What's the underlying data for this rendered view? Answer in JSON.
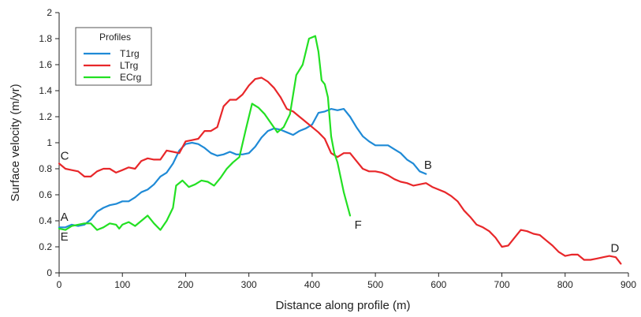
{
  "chart_data": {
    "type": "line",
    "title": "",
    "xlabel": "Distance along profile (m)",
    "ylabel": "Surface velocity (m/yr)",
    "xlim": [
      0,
      900
    ],
    "ylim": [
      0,
      2
    ],
    "xticks": [
      0,
      100,
      200,
      300,
      400,
      500,
      600,
      700,
      800,
      900
    ],
    "yticks": [
      0,
      0.2,
      0.4,
      0.6,
      0.8,
      1,
      1.2,
      1.4,
      1.6,
      1.8,
      2
    ],
    "ytick_labels": [
      "0",
      "0.2",
      "0.4",
      "0.6",
      "0.8",
      "1",
      "1.2",
      "1.4",
      "1.6",
      "1.8",
      "2"
    ],
    "grid": false,
    "legend": {
      "title": "Profiles",
      "placement": "top-left"
    },
    "series": [
      {
        "name": "T1rg",
        "color": "#1f8ad6",
        "points": [
          [
            0,
            0.35
          ],
          [
            10,
            0.35
          ],
          [
            20,
            0.37
          ],
          [
            30,
            0.36
          ],
          [
            40,
            0.37
          ],
          [
            50,
            0.41
          ],
          [
            60,
            0.47
          ],
          [
            70,
            0.5
          ],
          [
            80,
            0.52
          ],
          [
            90,
            0.53
          ],
          [
            100,
            0.55
          ],
          [
            110,
            0.55
          ],
          [
            120,
            0.58
          ],
          [
            130,
            0.62
          ],
          [
            140,
            0.64
          ],
          [
            150,
            0.68
          ],
          [
            160,
            0.74
          ],
          [
            170,
            0.77
          ],
          [
            180,
            0.84
          ],
          [
            190,
            0.94
          ],
          [
            200,
            0.99
          ],
          [
            210,
            1.0
          ],
          [
            220,
            0.99
          ],
          [
            230,
            0.96
          ],
          [
            240,
            0.92
          ],
          [
            250,
            0.9
          ],
          [
            260,
            0.91
          ],
          [
            270,
            0.93
          ],
          [
            280,
            0.91
          ],
          [
            290,
            0.91
          ],
          [
            300,
            0.92
          ],
          [
            310,
            0.97
          ],
          [
            320,
            1.04
          ],
          [
            330,
            1.09
          ],
          [
            340,
            1.11
          ],
          [
            350,
            1.1
          ],
          [
            360,
            1.08
          ],
          [
            370,
            1.06
          ],
          [
            380,
            1.09
          ],
          [
            390,
            1.11
          ],
          [
            400,
            1.14
          ],
          [
            410,
            1.23
          ],
          [
            420,
            1.24
          ],
          [
            430,
            1.26
          ],
          [
            440,
            1.25
          ],
          [
            450,
            1.26
          ],
          [
            460,
            1.2
          ],
          [
            470,
            1.12
          ],
          [
            480,
            1.05
          ],
          [
            490,
            1.01
          ],
          [
            500,
            0.98
          ],
          [
            510,
            0.98
          ],
          [
            520,
            0.98
          ],
          [
            530,
            0.95
          ],
          [
            540,
            0.92
          ],
          [
            550,
            0.87
          ],
          [
            560,
            0.84
          ],
          [
            570,
            0.78
          ],
          [
            580,
            0.76
          ]
        ]
      },
      {
        "name": "LTrg",
        "color": "#e8272a",
        "points": [
          [
            0,
            0.84
          ],
          [
            10,
            0.8
          ],
          [
            20,
            0.79
          ],
          [
            30,
            0.78
          ],
          [
            40,
            0.74
          ],
          [
            50,
            0.74
          ],
          [
            60,
            0.78
          ],
          [
            70,
            0.8
          ],
          [
            80,
            0.8
          ],
          [
            90,
            0.77
          ],
          [
            100,
            0.79
          ],
          [
            110,
            0.81
          ],
          [
            120,
            0.8
          ],
          [
            130,
            0.86
          ],
          [
            140,
            0.88
          ],
          [
            150,
            0.87
          ],
          [
            160,
            0.87
          ],
          [
            170,
            0.94
          ],
          [
            180,
            0.93
          ],
          [
            190,
            0.92
          ],
          [
            200,
            1.01
          ],
          [
            210,
            1.02
          ],
          [
            220,
            1.03
          ],
          [
            230,
            1.09
          ],
          [
            240,
            1.09
          ],
          [
            250,
            1.12
          ],
          [
            260,
            1.28
          ],
          [
            270,
            1.33
          ],
          [
            280,
            1.33
          ],
          [
            290,
            1.37
          ],
          [
            300,
            1.44
          ],
          [
            310,
            1.49
          ],
          [
            320,
            1.5
          ],
          [
            330,
            1.47
          ],
          [
            340,
            1.42
          ],
          [
            350,
            1.35
          ],
          [
            360,
            1.26
          ],
          [
            370,
            1.24
          ],
          [
            380,
            1.2
          ],
          [
            390,
            1.16
          ],
          [
            400,
            1.12
          ],
          [
            410,
            1.08
          ],
          [
            420,
            1.03
          ],
          [
            430,
            0.92
          ],
          [
            440,
            0.89
          ],
          [
            450,
            0.92
          ],
          [
            460,
            0.92
          ],
          [
            470,
            0.86
          ],
          [
            480,
            0.8
          ],
          [
            490,
            0.78
          ],
          [
            500,
            0.78
          ],
          [
            510,
            0.77
          ],
          [
            520,
            0.75
          ],
          [
            530,
            0.72
          ],
          [
            540,
            0.7
          ],
          [
            550,
            0.69
          ],
          [
            560,
            0.67
          ],
          [
            570,
            0.68
          ],
          [
            580,
            0.69
          ],
          [
            590,
            0.66
          ],
          [
            600,
            0.64
          ],
          [
            610,
            0.62
          ],
          [
            620,
            0.59
          ],
          [
            630,
            0.55
          ],
          [
            640,
            0.48
          ],
          [
            650,
            0.43
          ],
          [
            660,
            0.37
          ],
          [
            670,
            0.35
          ],
          [
            680,
            0.32
          ],
          [
            690,
            0.27
          ],
          [
            700,
            0.2
          ],
          [
            710,
            0.21
          ],
          [
            720,
            0.27
          ],
          [
            730,
            0.33
          ],
          [
            740,
            0.32
          ],
          [
            750,
            0.3
          ],
          [
            760,
            0.29
          ],
          [
            770,
            0.25
          ],
          [
            780,
            0.21
          ],
          [
            790,
            0.16
          ],
          [
            800,
            0.13
          ],
          [
            810,
            0.14
          ],
          [
            820,
            0.14
          ],
          [
            830,
            0.1
          ],
          [
            840,
            0.1
          ],
          [
            850,
            0.11
          ],
          [
            860,
            0.12
          ],
          [
            870,
            0.13
          ],
          [
            880,
            0.12
          ],
          [
            888,
            0.07
          ]
        ]
      },
      {
        "name": "ECrg",
        "color": "#23e023",
        "points": [
          [
            0,
            0.34
          ],
          [
            10,
            0.33
          ],
          [
            20,
            0.36
          ],
          [
            30,
            0.37
          ],
          [
            40,
            0.38
          ],
          [
            50,
            0.38
          ],
          [
            60,
            0.33
          ],
          [
            70,
            0.35
          ],
          [
            80,
            0.38
          ],
          [
            90,
            0.37
          ],
          [
            95,
            0.34
          ],
          [
            100,
            0.37
          ],
          [
            110,
            0.39
          ],
          [
            120,
            0.36
          ],
          [
            130,
            0.4
          ],
          [
            140,
            0.44
          ],
          [
            150,
            0.38
          ],
          [
            160,
            0.33
          ],
          [
            170,
            0.4
          ],
          [
            180,
            0.5
          ],
          [
            185,
            0.67
          ],
          [
            195,
            0.71
          ],
          [
            205,
            0.66
          ],
          [
            215,
            0.68
          ],
          [
            225,
            0.71
          ],
          [
            235,
            0.7
          ],
          [
            245,
            0.67
          ],
          [
            255,
            0.73
          ],
          [
            265,
            0.8
          ],
          [
            275,
            0.85
          ],
          [
            285,
            0.89
          ],
          [
            295,
            1.1
          ],
          [
            305,
            1.3
          ],
          [
            315,
            1.27
          ],
          [
            325,
            1.22
          ],
          [
            335,
            1.15
          ],
          [
            345,
            1.08
          ],
          [
            355,
            1.12
          ],
          [
            365,
            1.22
          ],
          [
            375,
            1.52
          ],
          [
            385,
            1.6
          ],
          [
            395,
            1.8
          ],
          [
            405,
            1.82
          ],
          [
            410,
            1.7
          ],
          [
            415,
            1.48
          ],
          [
            420,
            1.45
          ],
          [
            425,
            1.35
          ],
          [
            430,
            1.05
          ],
          [
            435,
            0.92
          ],
          [
            440,
            0.85
          ],
          [
            450,
            0.62
          ],
          [
            460,
            0.44
          ]
        ]
      }
    ],
    "annotations": [
      {
        "text": "A",
        "x": 2,
        "y": 0.43
      },
      {
        "text": "E",
        "x": 2,
        "y": 0.28
      },
      {
        "text": "C",
        "x": 2,
        "y": 0.9
      },
      {
        "text": "B",
        "x": 577,
        "y": 0.83
      },
      {
        "text": "F",
        "x": 467,
        "y": 0.37
      },
      {
        "text": "D",
        "x": 872,
        "y": 0.19
      }
    ]
  }
}
